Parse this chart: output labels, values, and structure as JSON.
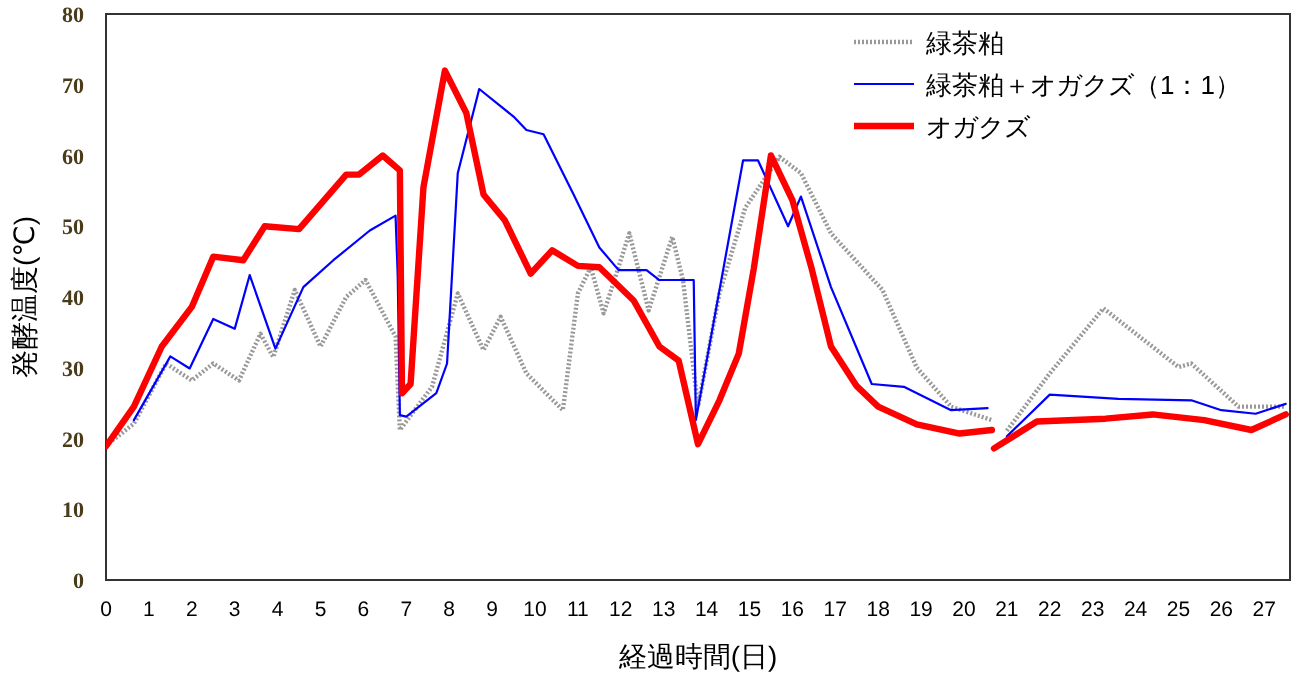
{
  "chart_data": {
    "type": "line",
    "xlabel": "経過時間(日)",
    "ylabel": "発酵温度(℃)",
    "xlim": [
      0,
      27.6
    ],
    "ylim": [
      0,
      80
    ],
    "xticks": [
      0,
      1,
      2,
      3,
      4,
      5,
      6,
      7,
      8,
      9,
      10,
      11,
      12,
      13,
      14,
      15,
      16,
      17,
      18,
      19,
      20,
      21,
      22,
      23,
      24,
      25,
      26,
      27
    ],
    "yticks": [
      0,
      10,
      20,
      30,
      40,
      50,
      60,
      70,
      80
    ],
    "grid": false,
    "legend": "top right",
    "marker": "none",
    "series": [
      {
        "name": "緑茶粕",
        "color": "#999999",
        "line_style": "dotted",
        "x": [
          0,
          0.65,
          1.4,
          2.0,
          2.5,
          3.1,
          3.6,
          3.9,
          4.4,
          5.0,
          5.6,
          6.05,
          6.75,
          6.85,
          7.6,
          8.2,
          8.8,
          9.2,
          9.8,
          10.65,
          11.0,
          11.3,
          11.6,
          12.2,
          12.65,
          13.2,
          13.45,
          13.8,
          14.3,
          14.9,
          15.7,
          16.2,
          16.9,
          18.1,
          18.9,
          19.7,
          20.65,
          null,
          21.0,
          22.0,
          23.25,
          25.0,
          25.3,
          26.4,
          27.5
        ],
        "values": [
          19,
          22.1,
          30.6,
          28.2,
          30.6,
          28.2,
          34.8,
          31.5,
          41,
          33,
          40,
          42.4,
          34.4,
          21.2,
          27.3,
          40.5,
          32.5,
          37.2,
          29.2,
          24,
          40.5,
          44.2,
          37.7,
          49,
          38.1,
          48.5,
          42.4,
          24.5,
          40.5,
          52.6,
          59.8,
          57.5,
          49,
          41,
          30,
          24.5,
          22.6,
          null,
          21.1,
          29.2,
          38.4,
          30.1,
          30.6,
          24.5,
          24.5
        ]
      },
      {
        "name": "緑茶粕＋オガクズ（1：1）",
        "color": "#0000ff",
        "line_style": "solid",
        "x": [
          0.65,
          1.5,
          1.95,
          2.5,
          3.0,
          3.35,
          3.95,
          4.6,
          5.3,
          6.15,
          6.75,
          6.8,
          6.85,
          7.0,
          7.7,
          7.95,
          8.2,
          8.7,
          9.5,
          9.8,
          10.2,
          10.9,
          11.5,
          11.95,
          12.6,
          12.9,
          13.7,
          13.75,
          14.85,
          15.2,
          15.9,
          16.2,
          16.9,
          17.85,
          18.6,
          19.7,
          20.55,
          null,
          21.0,
          22.0,
          23.6,
          25.3,
          26.0,
          26.8,
          27.5
        ],
        "values": [
          22.6,
          31.6,
          29.9,
          36.9,
          35.5,
          43.1,
          32.7,
          41.4,
          45.2,
          49.4,
          51.5,
          43,
          23.3,
          23.1,
          26.4,
          30.6,
          57.5,
          69.4,
          65.5,
          63.6,
          63,
          54.5,
          47,
          43.8,
          43.8,
          42.4,
          42.4,
          22.6,
          59.3,
          59.3,
          50,
          54.2,
          41.4,
          27.7,
          27.3,
          24,
          24.3,
          null,
          20.3,
          26.2,
          25.6,
          25.4,
          24,
          23.5,
          24.9
        ]
      },
      {
        "name": "オガクズ",
        "color": "#ff0000",
        "line_style": "solid",
        "x": [
          0,
          0.65,
          1.3,
          2.0,
          2.5,
          3.2,
          3.7,
          4.5,
          5.6,
          5.9,
          6.45,
          6.85,
          6.9,
          7.1,
          7.4,
          7.9,
          8.4,
          8.8,
          9.3,
          9.9,
          10.4,
          11.0,
          11.5,
          12.3,
          12.9,
          13.35,
          13.8,
          14.3,
          14.75,
          15.1,
          15.5,
          16.0,
          16.45,
          16.9,
          17.5,
          18.0,
          18.9,
          19.9,
          20.65,
          null,
          20.7,
          21.7,
          23.3,
          24.4,
          25.6,
          26.7,
          27.5
        ],
        "values": [
          18.9,
          24.5,
          33,
          38.6,
          45.7,
          45.2,
          50,
          49.6,
          57.3,
          57.3,
          60,
          57.9,
          26.4,
          27.7,
          55.5,
          72,
          66,
          54.5,
          50.8,
          43.3,
          46.6,
          44.4,
          44.2,
          39.5,
          33,
          31,
          19.2,
          25.4,
          32,
          44,
          60,
          53.7,
          44,
          33,
          27.4,
          24.5,
          22,
          20.7,
          21.2,
          null,
          18.6,
          22.4,
          22.8,
          23.4,
          22.6,
          21.2,
          23.4
        ]
      }
    ]
  }
}
